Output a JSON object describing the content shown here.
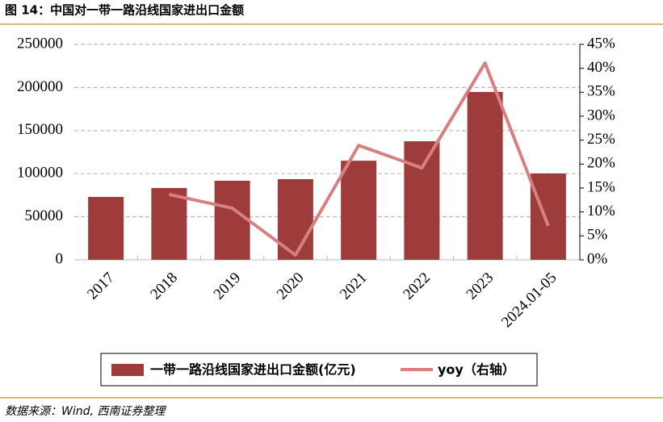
{
  "chart_data": {
    "type": "bar",
    "title": "图 14：中国对一带一路沿线国家进出口金额",
    "source": "数据来源：Wind, 西南证券整理",
    "categories": [
      "2017",
      "2018",
      "2019",
      "2020",
      "2021",
      "2022",
      "2023",
      "2024.01-05"
    ],
    "series": [
      {
        "name": "一带一路沿线国家进出口金额(亿元)",
        "type": "bar",
        "color": "#9e3c3c",
        "values": [
          73000,
          83300,
          91800,
          93600,
          115000,
          137600,
          194800,
          100200
        ]
      },
      {
        "name": "yoy（右轴）",
        "type": "line",
        "axis": "y2",
        "color": "#d88080",
        "values": [
          null,
          13.65,
          10.8,
          1.0,
          23.9,
          19.2,
          41.1,
          7.1
        ]
      }
    ],
    "ylim": [
      0,
      250000
    ],
    "yticks": [
      0,
      50000,
      100000,
      150000,
      200000,
      250000
    ],
    "y2lim": [
      0,
      45
    ],
    "y2ticks": [
      {
        "value": 0,
        "label": "0%"
      },
      {
        "value": 5,
        "label": "5%"
      },
      {
        "value": 10,
        "label": "10%"
      },
      {
        "value": 15,
        "label": "15%"
      },
      {
        "value": 20,
        "label": "20%"
      },
      {
        "value": 25,
        "label": "25%"
      },
      {
        "value": 30,
        "label": "30%"
      },
      {
        "value": 35,
        "label": "35%"
      },
      {
        "value": 40,
        "label": "40%"
      },
      {
        "value": 45,
        "label": "45%"
      }
    ],
    "grid": true
  }
}
